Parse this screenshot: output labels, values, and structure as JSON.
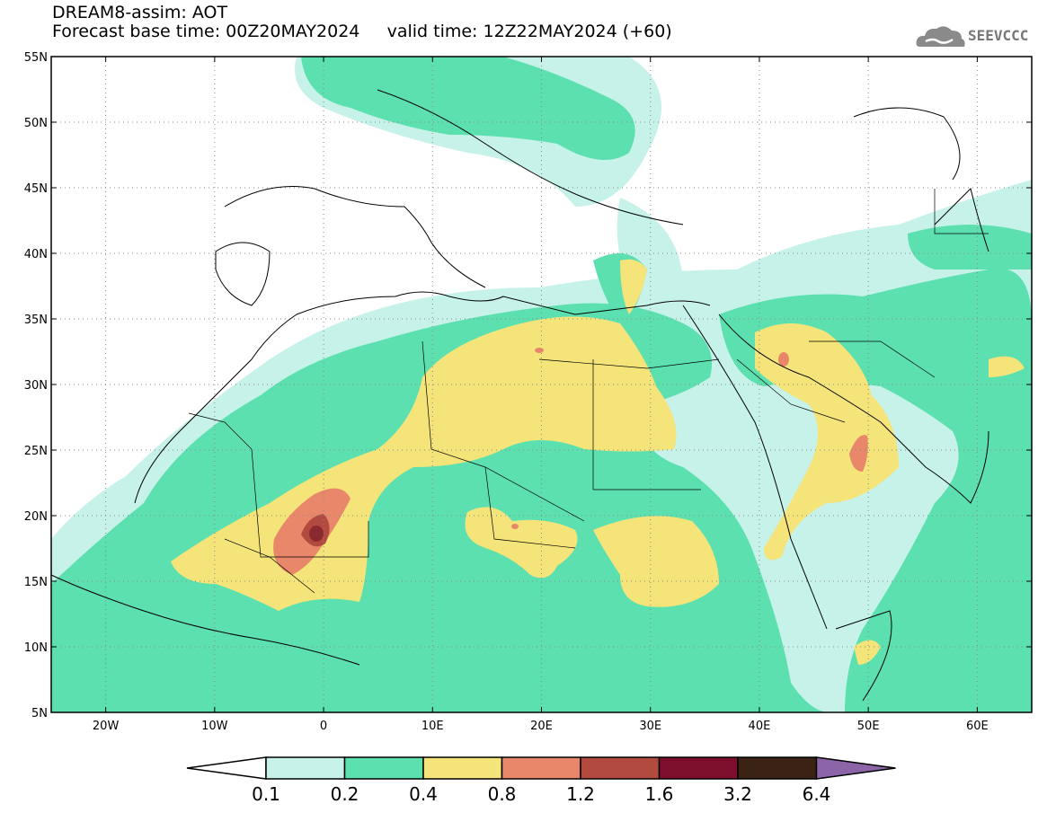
{
  "header": {
    "title_line1": "DREAM8-assim: AOT",
    "title_line2": "Forecast base time: 00Z20MAY2024     valid time: 12Z22MAY2024 (+60)"
  },
  "logo": {
    "text": "SEEVCCC",
    "icon": "cloud-logo-icon"
  },
  "map": {
    "lon_range": [
      -25,
      65
    ],
    "lat_range": [
      5,
      55
    ],
    "lon_ticks": [
      "20W",
      "10W",
      "0",
      "10E",
      "20E",
      "30E",
      "40E",
      "50E",
      "60E"
    ],
    "lat_ticks": [
      "55N",
      "50N",
      "45N",
      "40N",
      "35N",
      "30N",
      "25N",
      "20N",
      "15N",
      "10N",
      "5N"
    ],
    "grid": "dotted"
  },
  "colorbar": {
    "levels": [
      "0.1",
      "0.2",
      "0.4",
      "0.8",
      "1.2",
      "1.6",
      "3.2",
      "6.4"
    ],
    "colors": [
      "#c6f2ea",
      "#5ce0b0",
      "#f4e479",
      "#e8876a",
      "#b34a3f",
      "#7d0f2c",
      "#3a2315",
      "#8c65a8"
    ],
    "under_color": "#ffffff"
  }
}
